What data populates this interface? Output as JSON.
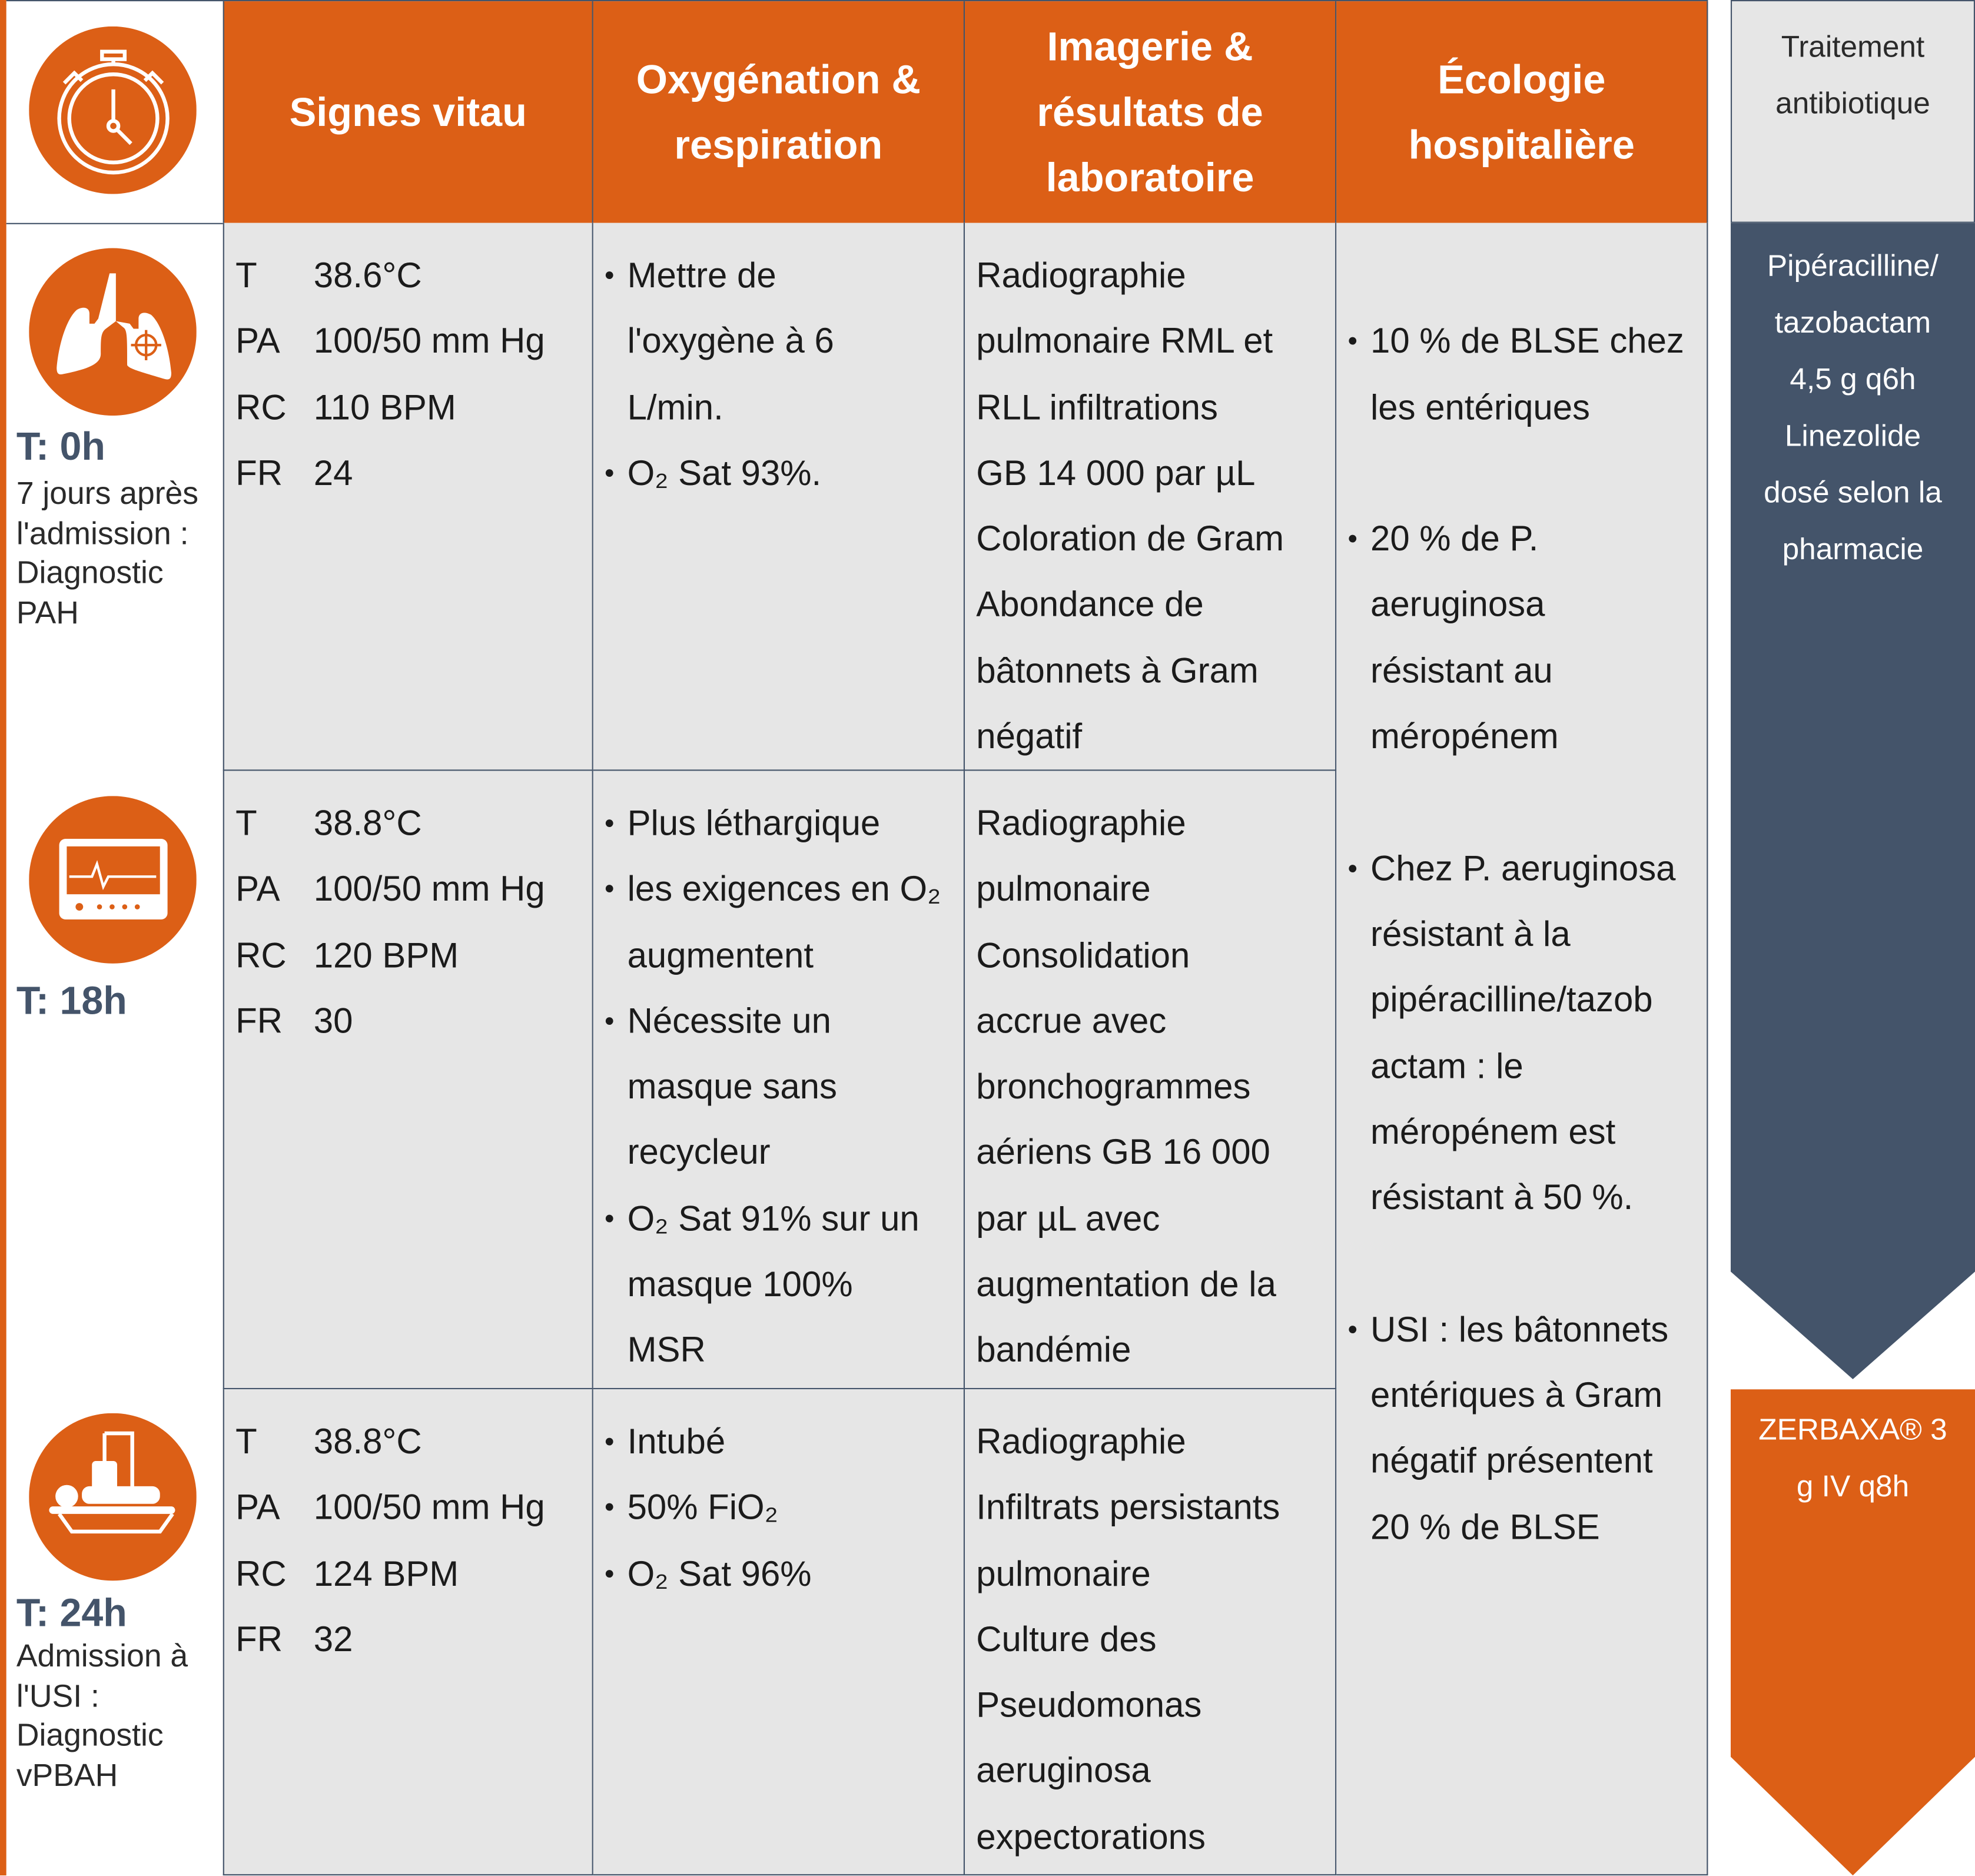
{
  "colors": {
    "accent": "#DC5F16",
    "dark": "#44546A",
    "cell": "#E6E6E6"
  },
  "header": {
    "icon": "stopwatch-icon",
    "columns": [
      "Signes vitau",
      "Oxygénation &\nrespiration",
      "Imagerie &\nrésultats de\nlaboratoire",
      "Écologie\nhospitalière"
    ]
  },
  "rows": [
    {
      "icon": "lungs-icon",
      "time": "T: 0h",
      "subtitle": "7 jours après\nl'admission :\nDiagnostic\nPAH",
      "vitals": [
        {
          "k": "T",
          "v": "38.6°C"
        },
        {
          "k": "PA",
          "v": "100/50 mm Hg"
        },
        {
          "k": "RC",
          "v": "110 BPM"
        },
        {
          "k": "FR",
          "v": "24"
        }
      ],
      "oxygen": [
        "Mettre de\nl'oxygène à 6\nL/min.",
        "O₂ Sat 93%."
      ],
      "imaging": "Radiographie\npulmonaire RML et\nRLL infiltrations\nGB   14 000 par µL\nColoration de Gram\nAbondance de\nbâtonnets à Gram\nnégatif"
    },
    {
      "icon": "monitor-icon",
      "time": "T: 18h",
      "subtitle": "",
      "vitals": [
        {
          "k": "T",
          "v": "38.8°C"
        },
        {
          "k": "PA",
          "v": "100/50 mm Hg"
        },
        {
          "k": "RC",
          "v": "120 BPM"
        },
        {
          "k": "FR",
          "v": "30"
        }
      ],
      "oxygen": [
        "Plus léthargique",
        "les exigences en O₂\naugmentent",
        "Nécessite un\nmasque sans\nrecycleur",
        "O₂ Sat 91% sur un\nmasque 100%\nMSR"
      ],
      "imaging": "Radiographie\npulmonaire\nConsolidation\naccrue avec\n bronchogrammes\naériens GB 16 000\npar µL avec\naugmentation de la\nbandémie"
    },
    {
      "icon": "hospital-bed-icon",
      "time": "T: 24h",
      "subtitle": "Admission à\nl'USI :\nDiagnostic\nvPBAH",
      "vitals": [
        {
          "k": "T",
          "v": "38.8°C"
        },
        {
          "k": "PA",
          "v": "100/50 mm Hg"
        },
        {
          "k": "RC",
          "v": "124 BPM"
        },
        {
          "k": "FR",
          "v": "32"
        }
      ],
      "oxygen": [
        "Intubé",
        "50% FiO₂",
        "O₂ Sat 96%"
      ],
      "imaging": "Radiographie\nInfiltrats persistants\npulmonaire\nCulture des\nPseudomonas\naeruginosa\nexpectorations"
    }
  ],
  "ecology": [
    "10 % de BLSE chez\nles entériques",
    "20 % de P.\naeruginosa\nrésistant au\nméropénem",
    "Chez P. aeruginosa\nrésistant à la\npipéracilline/tazob\nactam : le\nméropénem est\nrésistant à 50 %.",
    "USI : les bâtonnets\nentériques à Gram\nnégatif présentent\n20 % de BLSE"
  ],
  "treatment": {
    "title": "Traitement\nantibiotique",
    "first": "Pipéracilline/\ntazobactam\n4,5 g q6h\nLinezolide\ndosé selon la\npharmacie",
    "second": "ZERBAXA® 3\ng IV q8h"
  }
}
